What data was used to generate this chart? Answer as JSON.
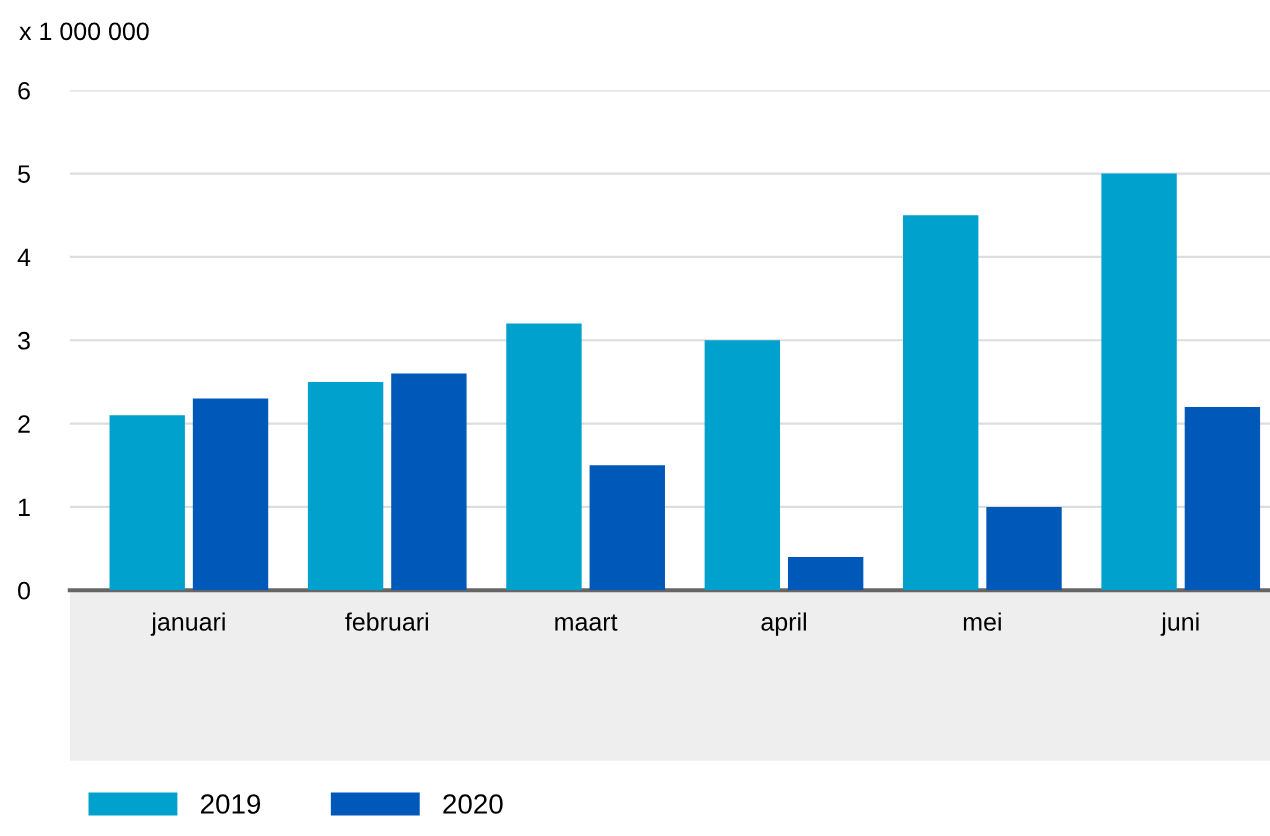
{
  "chart_data": {
    "type": "bar",
    "ylabel": "x 1 000 000",
    "categories": [
      "januari",
      "februari",
      "maart",
      "april",
      "mei",
      "juni"
    ],
    "series": [
      {
        "name": "2019",
        "color": "#00a1cd",
        "values": [
          2.1,
          2.5,
          3.2,
          3.0,
          4.5,
          5.0
        ]
      },
      {
        "name": "2020",
        "color": "#0058b8",
        "values": [
          2.3,
          2.6,
          1.5,
          0.4,
          1.0,
          2.2
        ]
      }
    ],
    "ylim": [
      0,
      6
    ],
    "yticks": [
      0,
      1,
      2,
      3,
      4,
      5,
      6
    ],
    "grid": "y",
    "legend": "bottom left"
  }
}
